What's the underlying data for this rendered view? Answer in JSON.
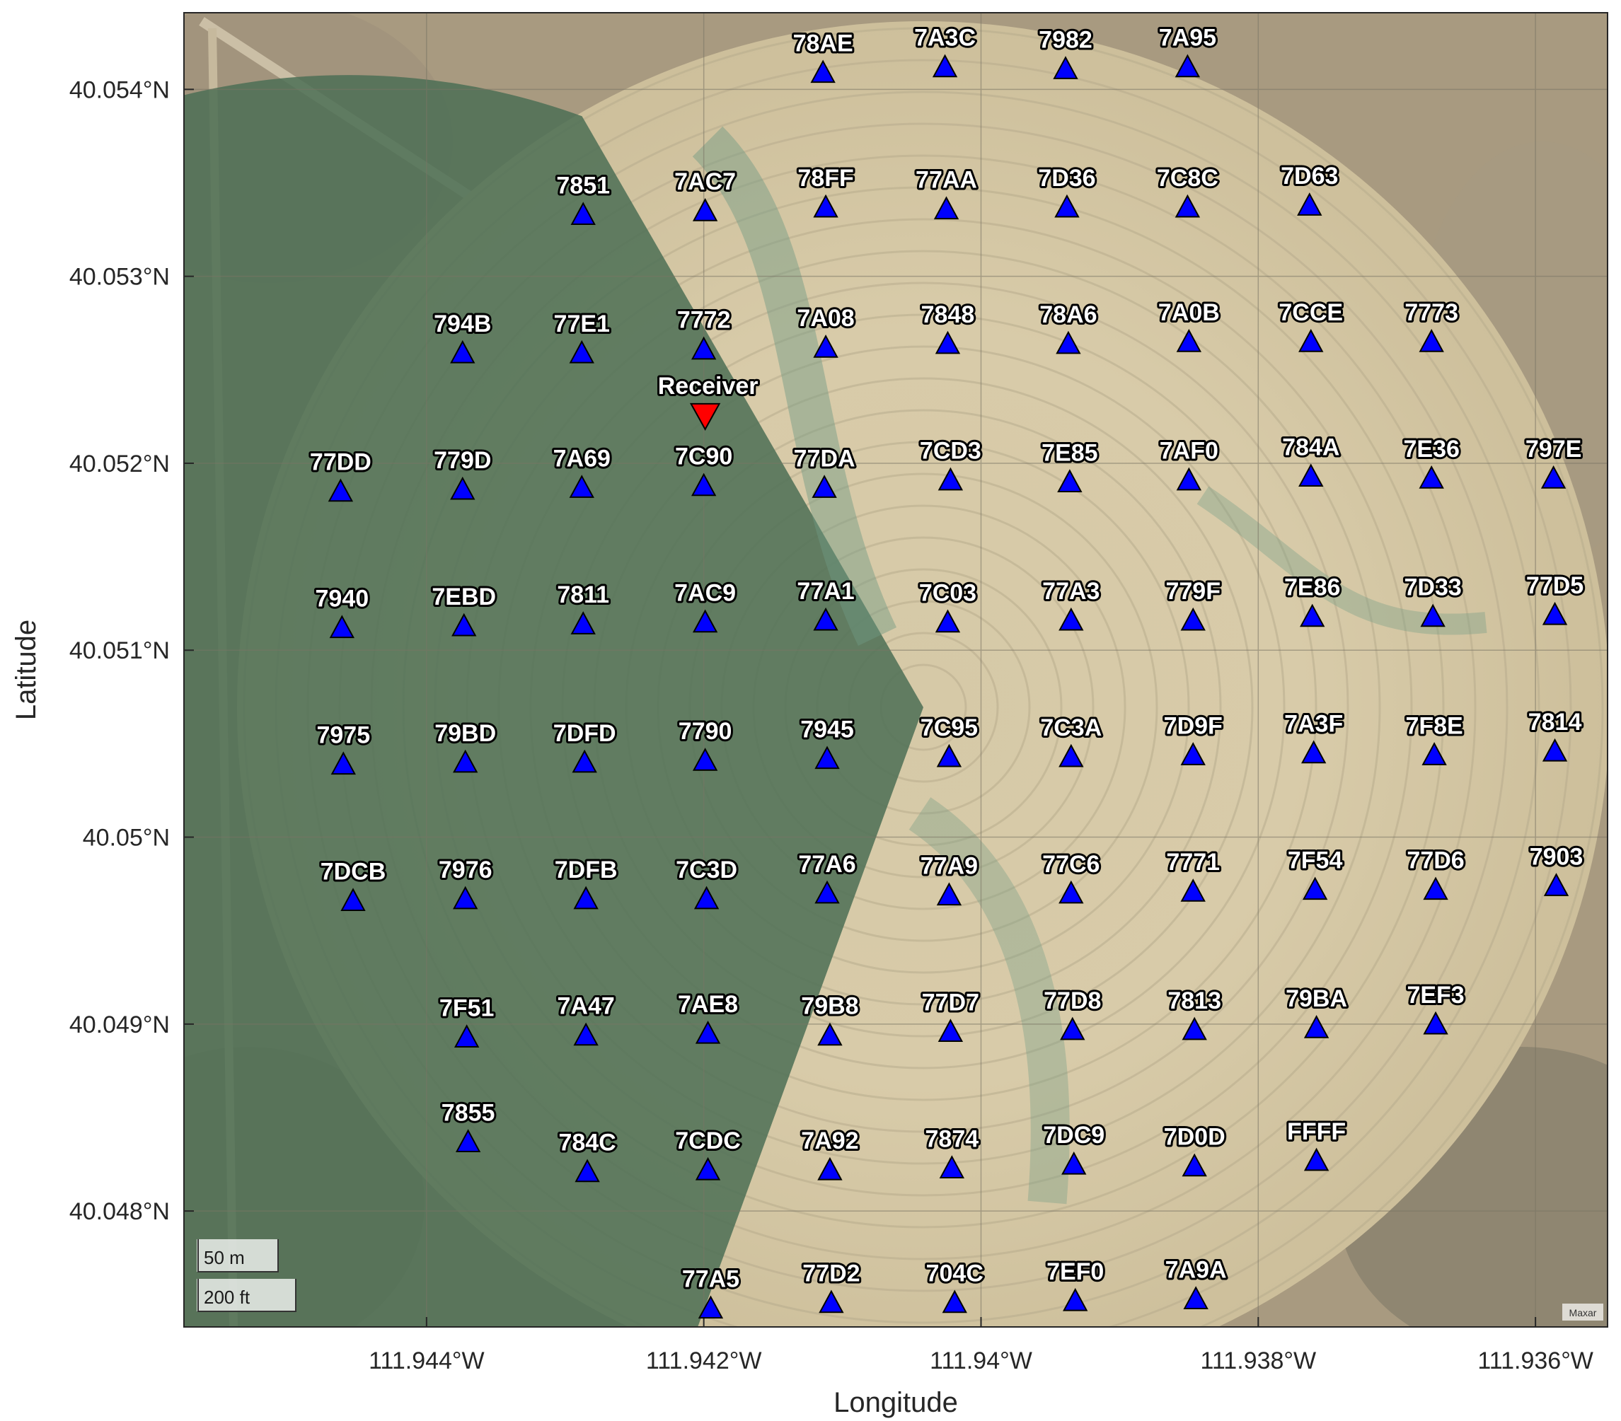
{
  "map": {
    "xlabel": "Longitude",
    "ylabel": "Latitude",
    "attribution": "Maxar",
    "basemap": "satellite imagery of a center-pivot irrigated field",
    "scalebar": {
      "metric": "50 m",
      "imperial": "200 ft"
    },
    "x_ticks": [
      {
        "value": -111.944,
        "label": "111.944°W"
      },
      {
        "value": -111.942,
        "label": "111.942°W"
      },
      {
        "value": -111.94,
        "label": "111.94°W"
      },
      {
        "value": -111.938,
        "label": "111.938°W"
      },
      {
        "value": -111.936,
        "label": "111.936°W"
      }
    ],
    "y_ticks": [
      {
        "value": 40.054,
        "label": "40.054°N"
      },
      {
        "value": 40.053,
        "label": "40.053°N"
      },
      {
        "value": 40.052,
        "label": "40.052°N"
      },
      {
        "value": 40.051,
        "label": "40.051°N"
      },
      {
        "value": 40.05,
        "label": "40.05°N"
      },
      {
        "value": 40.049,
        "label": "40.049°N"
      },
      {
        "value": 40.048,
        "label": "40.048°N"
      }
    ],
    "xlim": [
      -111.94575,
      -111.93548
    ],
    "ylim": [
      40.04738,
      40.05441
    ],
    "colors": {
      "node_marker": "#0000ff",
      "receiver_marker": "#ff0000"
    },
    "receiver": {
      "label": "Receiver",
      "lon": -111.94199,
      "lat": 40.05225
    },
    "nodes": [
      {
        "id": "78AE",
        "lon": -111.94114,
        "lat": 40.05409
      },
      {
        "id": "7A3C",
        "lon": -111.94026,
        "lat": 40.05412
      },
      {
        "id": "7982",
        "lon": -111.93939,
        "lat": 40.05411
      },
      {
        "id": "7A95",
        "lon": -111.93851,
        "lat": 40.05412
      },
      {
        "id": "7851",
        "lon": -111.94287,
        "lat": 40.05333
      },
      {
        "id": "7AC7",
        "lon": -111.94199,
        "lat": 40.05335
      },
      {
        "id": "78FF",
        "lon": -111.94112,
        "lat": 40.05337
      },
      {
        "id": "77AA",
        "lon": -111.94025,
        "lat": 40.05336
      },
      {
        "id": "7D36",
        "lon": -111.93938,
        "lat": 40.05337
      },
      {
        "id": "7C8C",
        "lon": -111.93851,
        "lat": 40.05337
      },
      {
        "id": "7D63",
        "lon": -111.93763,
        "lat": 40.05338
      },
      {
        "id": "794B",
        "lon": -111.94374,
        "lat": 40.05259
      },
      {
        "id": "77E1",
        "lon": -111.94288,
        "lat": 40.05259
      },
      {
        "id": "7772",
        "lon": -111.942,
        "lat": 40.05261
      },
      {
        "id": "7A08",
        "lon": -111.94112,
        "lat": 40.05262
      },
      {
        "id": "7848",
        "lon": -111.94024,
        "lat": 40.05264
      },
      {
        "id": "78A6",
        "lon": -111.93937,
        "lat": 40.05264
      },
      {
        "id": "7A0B",
        "lon": -111.9385,
        "lat": 40.05265
      },
      {
        "id": "7CCE",
        "lon": -111.93762,
        "lat": 40.05265
      },
      {
        "id": "7773",
        "lon": -111.93675,
        "lat": 40.05265
      },
      {
        "id": "77DD",
        "lon": -111.94462,
        "lat": 40.05185
      },
      {
        "id": "779D",
        "lon": -111.94374,
        "lat": 40.05186
      },
      {
        "id": "7A69",
        "lon": -111.94288,
        "lat": 40.05187
      },
      {
        "id": "7C90",
        "lon": -111.942,
        "lat": 40.05188
      },
      {
        "id": "77DA",
        "lon": -111.94113,
        "lat": 40.05187
      },
      {
        "id": "7CD3",
        "lon": -111.94022,
        "lat": 40.05191
      },
      {
        "id": "7E85",
        "lon": -111.93936,
        "lat": 40.0519
      },
      {
        "id": "7AF0",
        "lon": -111.9385,
        "lat": 40.05191
      },
      {
        "id": "784A",
        "lon": -111.93762,
        "lat": 40.05193
      },
      {
        "id": "7E36",
        "lon": -111.93675,
        "lat": 40.05192
      },
      {
        "id": "797E",
        "lon": -111.93587,
        "lat": 40.05192
      },
      {
        "id": "7940",
        "lon": -111.94461,
        "lat": 40.05112
      },
      {
        "id": "7EBD",
        "lon": -111.94373,
        "lat": 40.05113
      },
      {
        "id": "7811",
        "lon": -111.94287,
        "lat": 40.05114
      },
      {
        "id": "7AC9",
        "lon": -111.94199,
        "lat": 40.05115
      },
      {
        "id": "77A1",
        "lon": -111.94112,
        "lat": 40.05116
      },
      {
        "id": "7C03",
        "lon": -111.94024,
        "lat": 40.05115
      },
      {
        "id": "77A3",
        "lon": -111.93935,
        "lat": 40.05116
      },
      {
        "id": "779F",
        "lon": -111.93847,
        "lat": 40.05116
      },
      {
        "id": "7E86",
        "lon": -111.93761,
        "lat": 40.05118
      },
      {
        "id": "7D33",
        "lon": -111.93674,
        "lat": 40.05118
      },
      {
        "id": "77D5",
        "lon": -111.93586,
        "lat": 40.05119
      },
      {
        "id": "7975",
        "lon": -111.9446,
        "lat": 40.05039
      },
      {
        "id": "79BD",
        "lon": -111.94372,
        "lat": 40.0504
      },
      {
        "id": "7DFD",
        "lon": -111.94286,
        "lat": 40.0504
      },
      {
        "id": "7790",
        "lon": -111.94199,
        "lat": 40.05041
      },
      {
        "id": "7945",
        "lon": -111.94111,
        "lat": 40.05042
      },
      {
        "id": "7C95",
        "lon": -111.94023,
        "lat": 40.05043
      },
      {
        "id": "7C3A",
        "lon": -111.93935,
        "lat": 40.05043
      },
      {
        "id": "7D9F",
        "lon": -111.93847,
        "lat": 40.05044
      },
      {
        "id": "7A3F",
        "lon": -111.9376,
        "lat": 40.05045
      },
      {
        "id": "7F8E",
        "lon": -111.93673,
        "lat": 40.05044
      },
      {
        "id": "7814",
        "lon": -111.93586,
        "lat": 40.05046
      },
      {
        "id": "7DCB",
        "lon": -111.94453,
        "lat": 40.04966
      },
      {
        "id": "7976",
        "lon": -111.94372,
        "lat": 40.04967
      },
      {
        "id": "7DFB",
        "lon": -111.94285,
        "lat": 40.04967
      },
      {
        "id": "7C3D",
        "lon": -111.94198,
        "lat": 40.04967
      },
      {
        "id": "77A6",
        "lon": -111.94111,
        "lat": 40.0497
      },
      {
        "id": "77A9",
        "lon": -111.94023,
        "lat": 40.04969
      },
      {
        "id": "77C6",
        "lon": -111.93935,
        "lat": 40.0497
      },
      {
        "id": "7771",
        "lon": -111.93847,
        "lat": 40.04971
      },
      {
        "id": "7F54",
        "lon": -111.93759,
        "lat": 40.04972
      },
      {
        "id": "77D6",
        "lon": -111.93672,
        "lat": 40.04972
      },
      {
        "id": "7903",
        "lon": -111.93585,
        "lat": 40.04974
      },
      {
        "id": "7F51",
        "lon": -111.94371,
        "lat": 40.04893
      },
      {
        "id": "7A47",
        "lon": -111.94285,
        "lat": 40.04894
      },
      {
        "id": "7AE8",
        "lon": -111.94197,
        "lat": 40.04895
      },
      {
        "id": "79B8",
        "lon": -111.94109,
        "lat": 40.04894
      },
      {
        "id": "77D7",
        "lon": -111.94022,
        "lat": 40.04896
      },
      {
        "id": "77D8",
        "lon": -111.93934,
        "lat": 40.04897
      },
      {
        "id": "7813",
        "lon": -111.93846,
        "lat": 40.04897
      },
      {
        "id": "79BA",
        "lon": -111.93758,
        "lat": 40.04898
      },
      {
        "id": "7EF3",
        "lon": -111.93672,
        "lat": 40.049
      },
      {
        "id": "7855",
        "lon": -111.9437,
        "lat": 40.04837
      },
      {
        "id": "784C",
        "lon": -111.94284,
        "lat": 40.04821
      },
      {
        "id": "7CDC",
        "lon": -111.94197,
        "lat": 40.04822
      },
      {
        "id": "7A92",
        "lon": -111.94109,
        "lat": 40.04822
      },
      {
        "id": "7874",
        "lon": -111.94021,
        "lat": 40.04823
      },
      {
        "id": "7DC9",
        "lon": -111.93933,
        "lat": 40.04825
      },
      {
        "id": "7D0D",
        "lon": -111.93846,
        "lat": 40.04824
      },
      {
        "id": "FFFF",
        "lon": -111.93758,
        "lat": 40.04827
      },
      {
        "id": "77A5",
        "lon": -111.94195,
        "lat": 40.04748
      },
      {
        "id": "77D2",
        "lon": -111.94108,
        "lat": 40.04751
      },
      {
        "id": "704C",
        "lon": -111.94019,
        "lat": 40.04751
      },
      {
        "id": "7EF0",
        "lon": -111.93932,
        "lat": 40.04752
      },
      {
        "id": "7A9A",
        "lon": -111.93845,
        "lat": 40.04753
      }
    ]
  }
}
